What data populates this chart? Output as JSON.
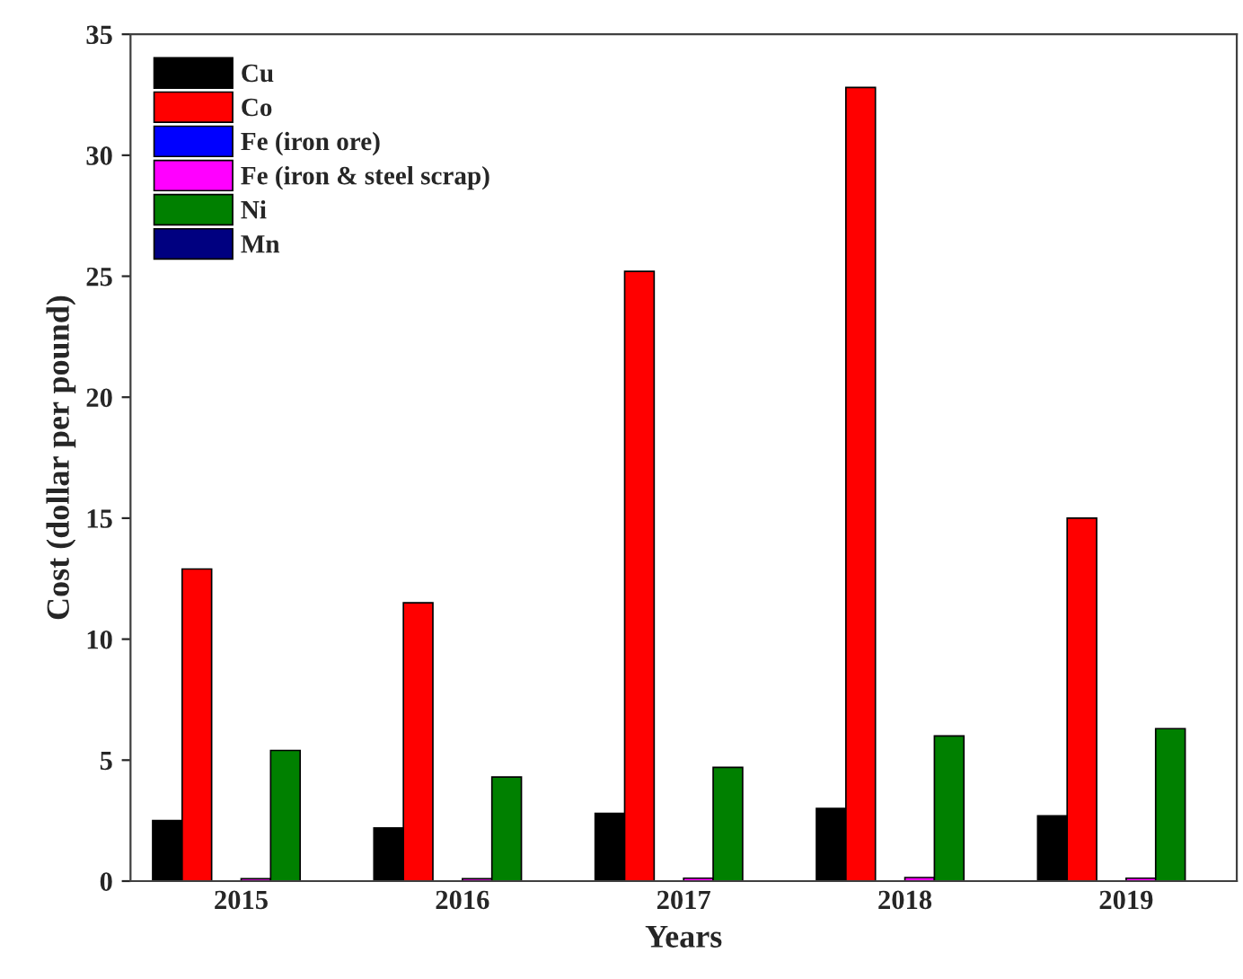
{
  "chart_data": {
    "type": "bar",
    "xlabel": "Years",
    "ylabel": "Cost (dollar per pound)",
    "categories": [
      "2015",
      "2016",
      "2017",
      "2018",
      "2019"
    ],
    "series": [
      {
        "name": "Cu",
        "color": "#000000",
        "values": [
          2.5,
          2.2,
          2.8,
          3.0,
          2.7
        ]
      },
      {
        "name": "Co",
        "color": "#ff0000",
        "values": [
          12.9,
          11.5,
          25.2,
          32.8,
          15.0
        ]
      },
      {
        "name": "Fe (iron ore)",
        "color": "#0000ff",
        "values": [
          null,
          null,
          null,
          null,
          null
        ]
      },
      {
        "name": "Fe (iron & steel scrap)",
        "color": "#ff00ff",
        "values": [
          0.1,
          0.1,
          0.12,
          0.15,
          0.12
        ]
      },
      {
        "name": "Ni",
        "color": "#008000",
        "values": [
          5.4,
          4.3,
          4.7,
          6.0,
          6.3
        ]
      },
      {
        "name": "Mn",
        "color": "#000080",
        "values": [
          null,
          null,
          null,
          null,
          null
        ]
      }
    ],
    "ylim": [
      0,
      35
    ],
    "yticks": [
      0,
      5,
      10,
      15,
      20,
      25,
      30,
      35
    ],
    "grid": false,
    "legend": "top left"
  }
}
